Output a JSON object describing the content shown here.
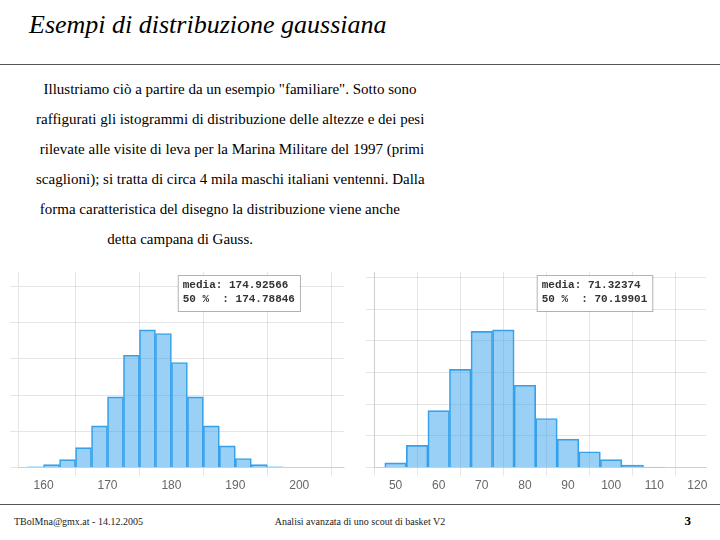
{
  "title": "Esempi di distribuzione gaussiana",
  "text_body": [
    "  Illustriamo ciò a partire da un esempio \"familiare\". Sotto sono",
    "raffigurati gli istogrammi di distribuzione delle altezze e dei pesi",
    " rilevate alle visite di leva per la Marina Militare del 1997 (primi",
    "scaglioni); si tratta di circa 4 mila maschi italiani ventenni. Dalla",
    " forma caratteristica del disegno la distribuzione viene anche",
    "                   detta campana di Gauss."
  ],
  "footer": [
    "TBolMna@gmx.at - 14.12.2005",
    "Analisi avanzata di uno scout di basket V2",
    "3"
  ],
  "chart_data": [
    {
      "type": "histogram",
      "bins": [
        157.5,
        160,
        162.5,
        165,
        167.5,
        170,
        172.5,
        175,
        177.5,
        180,
        182.5,
        185,
        187.5,
        190,
        192.5,
        195,
        197.5
      ],
      "values": [
        2,
        8,
        22,
        55,
        115,
        195,
        310,
        380,
        370,
        290,
        195,
        115,
        60,
        25,
        8,
        2
      ],
      "xlim": [
        156,
        207
      ],
      "xticks": [
        160,
        170,
        180,
        190,
        200
      ],
      "ylim": [
        0,
        539.6
      ],
      "yticks": [
        0,
        100,
        200,
        300,
        400,
        500
      ],
      "grid": true,
      "tick_labels": "x",
      "annotations": [
        "media: 174.92566",
        "50 %  : 174.78846"
      ]
    },
    {
      "type": "histogram",
      "bins": [
        47.5,
        52.5,
        57.5,
        62.5,
        67.5,
        72.5,
        77.5,
        82.5,
        87.5,
        92.5,
        97.5,
        102.5,
        107.5,
        112.5
      ],
      "values": [
        15,
        70,
        180,
        310,
        430,
        435,
        260,
        155,
        90,
        50,
        25,
        8,
        2
      ],
      "xlim": [
        45,
        122
      ],
      "xticks": [
        50,
        60,
        70,
        80,
        90,
        100,
        110,
        120
      ],
      "ylim": [
        0,
        617.7
      ],
      "yticks": [
        0,
        100,
        200,
        300,
        400,
        500,
        600
      ],
      "grid": true,
      "tick_labels": "x",
      "annotations": [
        "media: 71.32374",
        "50 %  : 70.19901"
      ]
    }
  ]
}
